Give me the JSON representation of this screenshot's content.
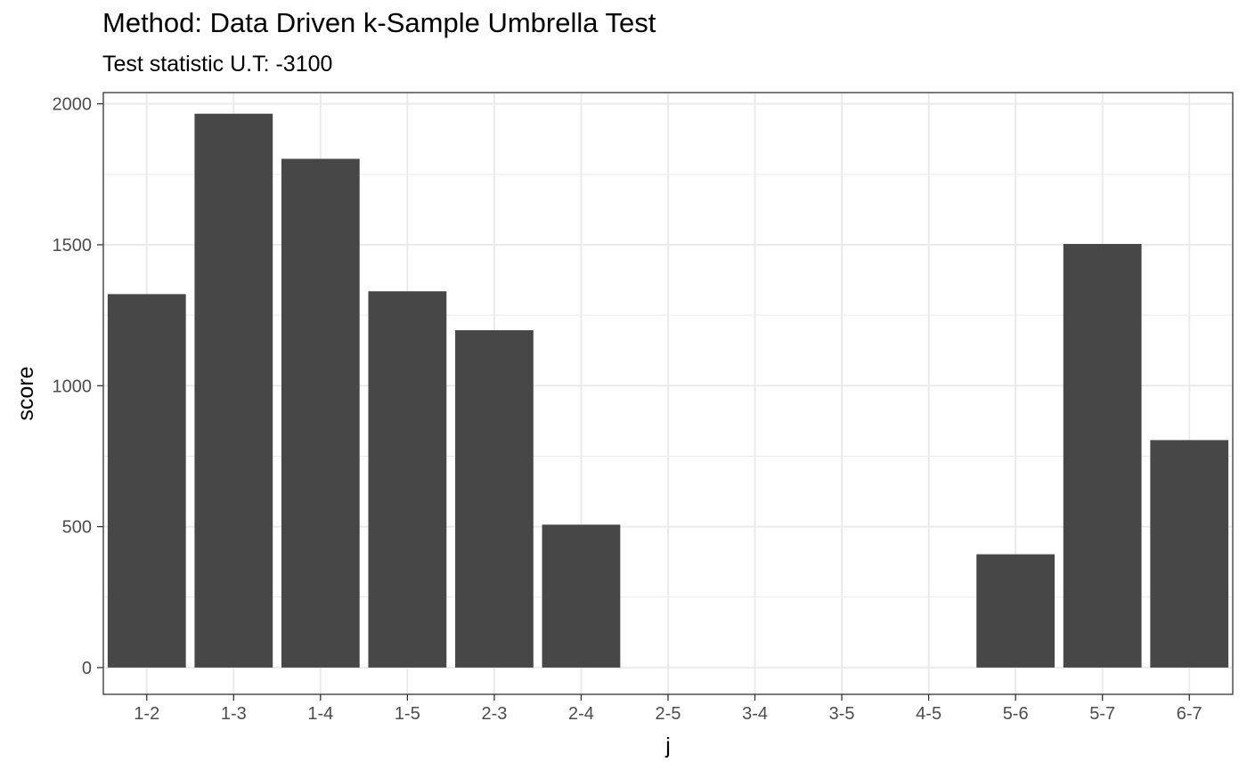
{
  "chart_data": {
    "type": "bar",
    "title": "Method: Data Driven k-Sample Umbrella Test",
    "subtitle": "Test statistic U.T: -3100",
    "xlabel": "j",
    "ylabel": "score",
    "categories": [
      "1-2",
      "1-3",
      "1-4",
      "1-5",
      "2-3",
      "2-4",
      "2-5",
      "3-4",
      "3-5",
      "4-5",
      "5-6",
      "5-7",
      "6-7"
    ],
    "values": [
      1325,
      1965,
      1805,
      1335,
      1197,
      507,
      0,
      0,
      0,
      0,
      402,
      1503,
      807
    ],
    "ylim": [
      -95,
      2040
    ],
    "yticks": [
      0,
      500,
      1000,
      1500,
      2000
    ],
    "grid": true,
    "bar_color": "#474747",
    "grid_color": "#ebebeb",
    "panel_border_color": "#333333",
    "tick_label_color": "#4d4d4d"
  }
}
